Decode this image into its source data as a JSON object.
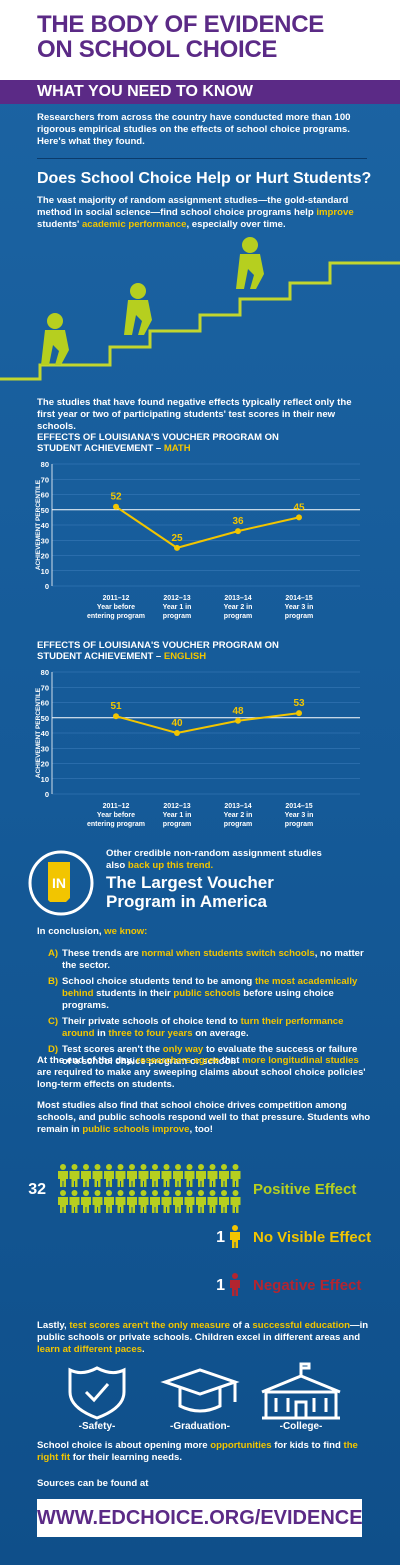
{
  "header": {
    "title_lines": [
      "THE BODY OF EVIDENCE",
      "ON SCHOOL CHOICE"
    ],
    "banner": "WHAT YOU NEED TO KNOW"
  },
  "intro": "Researchers from across the country have conducted more than 100 rigorous empirical studies on the effects of school choice programs. Here's what they found.",
  "question": "Does School Choice Help or Hurt Students?",
  "paragraph_1": [
    {
      "text": "The vast majority of random assignment studies—the gold-standard method in social science—find school choice programs help "
    },
    {
      "text": "improve",
      "color": "#f2c500"
    },
    {
      "text": " students' "
    },
    {
      "text": "academic performance",
      "color": "#f2c500"
    },
    {
      "text": ", especially over time."
    }
  ],
  "paragraph_2": [
    {
      "text": "The studies that have found negative effects typically reflect only the first year or two of participating students' test scores in their new schools."
    }
  ],
  "charts": [
    {
      "type": "line",
      "title": "EFFECTS OF LOUISIANA'S VOUCHER PROGRAM ON STUDENT ACHIEVEMENT –",
      "subject": "MATH",
      "y_label": "ACHIEVEMENT PERCENTILE",
      "categories": [
        [
          "2011–12",
          "Year before",
          "entering program"
        ],
        [
          "2012–13",
          "Year 1 in",
          "program"
        ],
        [
          "2013–14",
          "Year 2 in",
          "program"
        ],
        [
          "2014–15",
          "Year 3 in",
          "program"
        ]
      ],
      "values": [
        52,
        25,
        36,
        45
      ],
      "color": "#f2c500",
      "reference": 50,
      "ylim": [
        0,
        80
      ],
      "yticks": [
        0,
        10,
        20,
        30,
        40,
        50,
        60,
        70,
        80
      ],
      "grid": true
    },
    {
      "type": "line",
      "title": "EFFECTS OF LOUISIANA'S VOUCHER PROGRAM ON STUDENT ACHIEVEMENT –",
      "subject": "ENGLISH",
      "y_label": "ACHIEVEMENT PERCENTILE",
      "categories": [
        [
          "2011–12",
          "Year before",
          "entering program"
        ],
        [
          "2012–13",
          "Year 1 in",
          "program"
        ],
        [
          "2013–14",
          "Year 2 in",
          "program"
        ],
        [
          "2014–15",
          "Year 3 in",
          "program"
        ]
      ],
      "values": [
        51,
        40,
        48,
        53
      ],
      "color": "#f2c500",
      "reference": 50,
      "ylim": [
        0,
        80
      ],
      "yticks": [
        0,
        10,
        20,
        30,
        40,
        50,
        60,
        70,
        80
      ],
      "grid": true
    }
  ],
  "indiana": {
    "badge": "IN",
    "note": [
      {
        "text": "Other credible non-random assignment studies also "
      },
      {
        "text": "back up this trend.",
        "color": "#f2c500"
      }
    ],
    "heading": "The Largest Voucher Program in America"
  },
  "conclusion": {
    "intro": [
      {
        "text": "In conclusion, "
      },
      {
        "text": "we know:",
        "color": "#f2c500"
      }
    ],
    "items": [
      {
        "letter": "A)",
        "text": [
          {
            "text": "These trends are "
          },
          {
            "text": "normal when students switch schools",
            "color": "#f2c500"
          },
          {
            "text": ", no matter the sector."
          }
        ]
      },
      {
        "letter": "B)",
        "text": [
          {
            "text": "School choice students tend to be among "
          },
          {
            "text": "the most academically behind",
            "color": "#f2c500"
          },
          {
            "text": " students in their "
          },
          {
            "text": "public schools",
            "color": "#f2c500"
          },
          {
            "text": " before using choice programs."
          }
        ]
      },
      {
        "letter": "C)",
        "text": [
          {
            "text": "Their private schools of choice tend to "
          },
          {
            "text": "turn their performance around",
            "color": "#f2c500"
          },
          {
            "text": " in "
          },
          {
            "text": "three to four years",
            "color": "#f2c500"
          },
          {
            "text": " on average."
          }
        ]
      },
      {
        "letter": "D)",
        "text": [
          {
            "text": "Test scores aren't the "
          },
          {
            "text": "only way",
            "color": "#f2c500"
          },
          {
            "text": " to evaluate the success or failure of a school choice program or school."
          }
        ]
      }
    ]
  },
  "paragraph_3": [
    {
      "text": "At the end of the day, "
    },
    {
      "text": "researchers agree",
      "color": "#f2c500"
    },
    {
      "text": " that "
    },
    {
      "text": "more longitudinal studies",
      "color": "#f2c500"
    },
    {
      "text": " are required to make any sweeping claims about school choice policies' long-term effects on students."
    }
  ],
  "paragraph_4": [
    {
      "text": "Most studies also find that school choice drives competition among schools, and public schools respond well to that pressure. Students who remain in "
    },
    {
      "text": "public schools improve",
      "color": "#f2c500"
    },
    {
      "text": ", too!"
    }
  ],
  "effects": [
    {
      "count": 32,
      "label": "Positive Effect",
      "color": "#b6cf1f"
    },
    {
      "count": 1,
      "label": "No Visible Effect",
      "color": "#f2c500"
    },
    {
      "count": 1,
      "label": "Negative Effect",
      "color": "#b32530"
    }
  ],
  "paragraph_5": [
    {
      "text": "Lastly, "
    },
    {
      "text": "test scores aren't the only measure",
      "color": "#f2c500"
    },
    {
      "text": " of a "
    },
    {
      "text": "successful education",
      "color": "#f2c500"
    },
    {
      "text": "—in public schools or private schools. Children excel in different areas and "
    },
    {
      "text": "learn at different paces",
      "color": "#f2c500"
    },
    {
      "text": "."
    }
  ],
  "outcomes": [
    "-Safety-",
    "-Graduation-",
    "-College-"
  ],
  "paragraph_6": [
    {
      "text": "School choice is about opening more "
    },
    {
      "text": "opportunities",
      "color": "#f2c500"
    },
    {
      "text": " for kids to find "
    },
    {
      "text": "the right fit",
      "color": "#f2c500"
    },
    {
      "text": " for their learning needs."
    }
  ],
  "sources": "Sources can be found at",
  "url": "WWW.EDCHOICE.ORG/EVIDENCE"
}
